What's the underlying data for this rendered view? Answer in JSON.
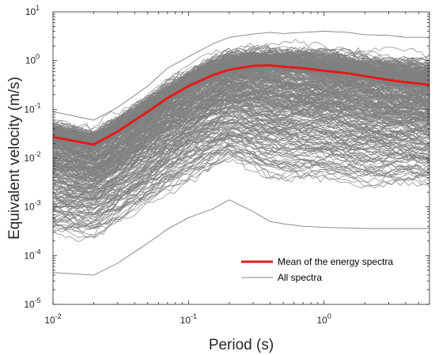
{
  "chart_data": {
    "type": "line",
    "title": "",
    "xlabel": "Period (s)",
    "ylabel": "Equivalent velocity (m/s)",
    "x_scale": "log",
    "y_scale": "log",
    "xlim": [
      0.01,
      6
    ],
    "ylim": [
      1e-05,
      10
    ],
    "x_ticks": [
      {
        "value": 0.01,
        "base": "10",
        "exp": "-2"
      },
      {
        "value": 0.1,
        "base": "10",
        "exp": "-1"
      },
      {
        "value": 1,
        "base": "10",
        "exp": "0"
      }
    ],
    "y_ticks": [
      {
        "value": 1e-05,
        "base": "10",
        "exp": "-5"
      },
      {
        "value": 0.0001,
        "base": "10",
        "exp": "-4"
      },
      {
        "value": 0.001,
        "base": "10",
        "exp": "-3"
      },
      {
        "value": 0.01,
        "base": "10",
        "exp": "-2"
      },
      {
        "value": 0.1,
        "base": "10",
        "exp": "-1"
      },
      {
        "value": 1,
        "base": "10",
        "exp": "0"
      },
      {
        "value": 10,
        "base": "10",
        "exp": "1"
      }
    ],
    "grid": false,
    "legend_position": "bottom-right",
    "series": [
      {
        "name": "Mean of the energy spectra",
        "color": "#e31a1c",
        "x": [
          0.01,
          0.02,
          0.03,
          0.05,
          0.07,
          0.1,
          0.15,
          0.2,
          0.3,
          0.4,
          0.5,
          0.7,
          1.0,
          1.5,
          2.0,
          3.0,
          4.0,
          6.0
        ],
        "y": [
          0.027,
          0.019,
          0.035,
          0.09,
          0.17,
          0.3,
          0.5,
          0.65,
          0.78,
          0.8,
          0.75,
          0.7,
          0.62,
          0.55,
          0.48,
          0.4,
          0.36,
          0.32
        ]
      },
      {
        "name": "All spectra",
        "color": "#808080",
        "x": [
          0.01,
          0.02,
          0.03,
          0.05,
          0.07,
          0.1,
          0.15,
          0.2,
          0.3,
          0.4,
          0.5,
          0.7,
          1.0,
          1.5,
          2.0,
          3.0,
          4.0,
          6.0
        ],
        "y_upper": [
          0.09,
          0.06,
          0.11,
          0.3,
          0.7,
          1.2,
          2.2,
          3.0,
          3.5,
          3.8,
          3.6,
          3.8,
          4.0,
          3.8,
          3.4,
          3.3,
          3.0,
          3.0
        ],
        "y_lower": [
          4.5e-05,
          4e-05,
          7e-05,
          0.00018,
          0.00035,
          0.0006,
          0.0009,
          0.0014,
          0.0008,
          0.0005,
          0.00045,
          0.0004,
          0.00038,
          0.00037,
          0.00036,
          0.00036,
          0.00036,
          0.00036
        ]
      }
    ]
  }
}
